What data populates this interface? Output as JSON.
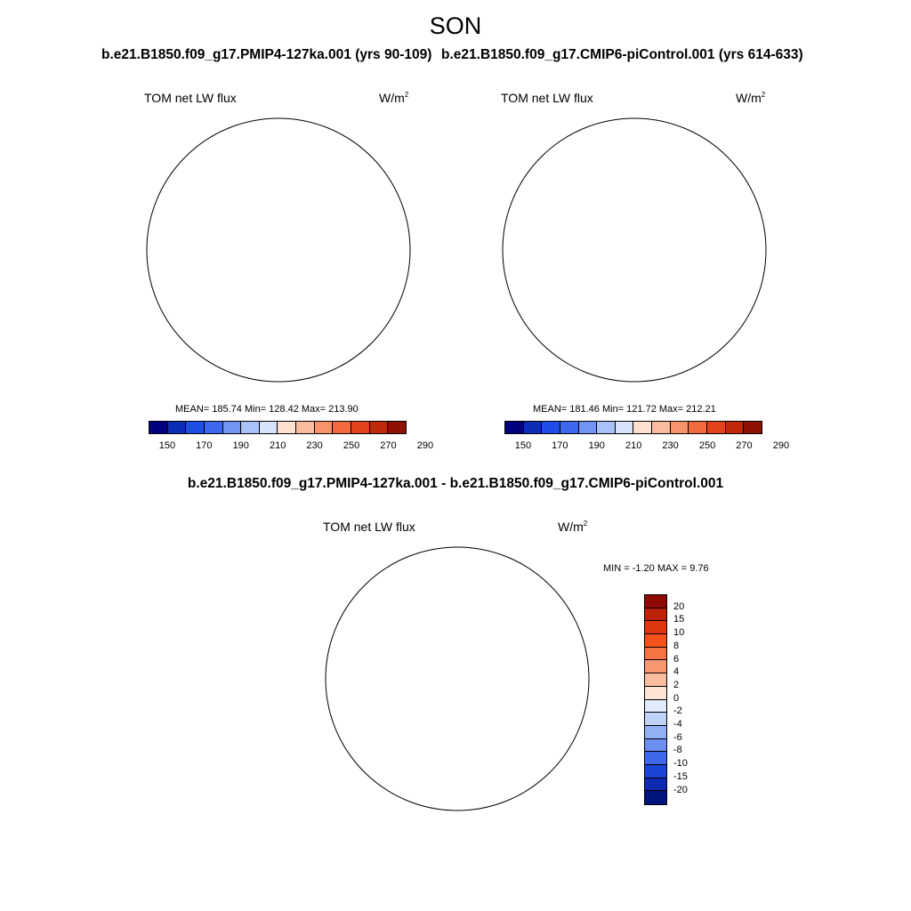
{
  "season": "SON",
  "left_panel": {
    "case": "b.e21.B1850.f09_g17.PMIP4-127ka.001 (yrs 90-109)",
    "variable": "TOM net LW flux",
    "units": "W/m",
    "units_sup": "2",
    "stats": "MEAN= 185.74  Min= 128.42  Max= 213.90"
  },
  "right_panel": {
    "case": "b.e21.B1850.f09_g17.CMIP6-piControl.001 (yrs 614-633)",
    "variable": "TOM net LW flux",
    "units": "W/m",
    "units_sup": "2",
    "stats": "MEAN= 181.46  Min= 121.72  Max= 212.21"
  },
  "diff_panel": {
    "title": "b.e21.B1850.f09_g17.PMIP4-127ka.001 - b.e21.B1850.f09_g17.CMIP6-piControl.001",
    "variable": "TOM net LW flux",
    "units": "W/m",
    "units_sup": "2",
    "stats": "MIN =  -1.20 MAX =   9.76"
  },
  "abs_colorbar": {
    "ticks": [
      "150",
      "170",
      "190",
      "210",
      "230",
      "250",
      "270",
      "290"
    ],
    "colors": [
      "#000080",
      "#0c2eb7",
      "#1f4de8",
      "#3f68f0",
      "#7294f5",
      "#a9c2f8",
      "#d6e3fb",
      "#fde0cf",
      "#fbbc9e",
      "#f8936c",
      "#f26a3e",
      "#e3431c",
      "#c02a0b",
      "#8e1104"
    ]
  },
  "diff_colorbar": {
    "ticks": [
      "20",
      "15",
      "10",
      "8",
      "6",
      "4",
      "2",
      "0",
      "-2",
      "-4",
      "-6",
      "-8",
      "-10",
      "-15",
      "-20"
    ],
    "colors": [
      "#8e0a04",
      "#bd2208",
      "#e0360d",
      "#f3521b",
      "#f67343",
      "#f99770",
      "#fbbd9f",
      "#fde3d3",
      "#e0ebfb",
      "#bfd2f8",
      "#92b0f4",
      "#6c8ff0",
      "#3f68ea",
      "#1d45d4",
      "#0c2bb0",
      "#00157c"
    ]
  },
  "map_colors": {
    "outer_ocean": "#a9c2f8",
    "mid_ring": "#7294f5",
    "inner_ring": "#3f68f0",
    "shelf": "#1f4de8",
    "coast": "#0c2eb7",
    "plateau": "#000080",
    "diff_outer": "#fbbd9f",
    "diff_weak": "#fde3d3",
    "diff_strong": "#f99770",
    "diff_max": "#f3521b",
    "diff_neg": "#e0ebfb",
    "coastline": "#000000"
  }
}
